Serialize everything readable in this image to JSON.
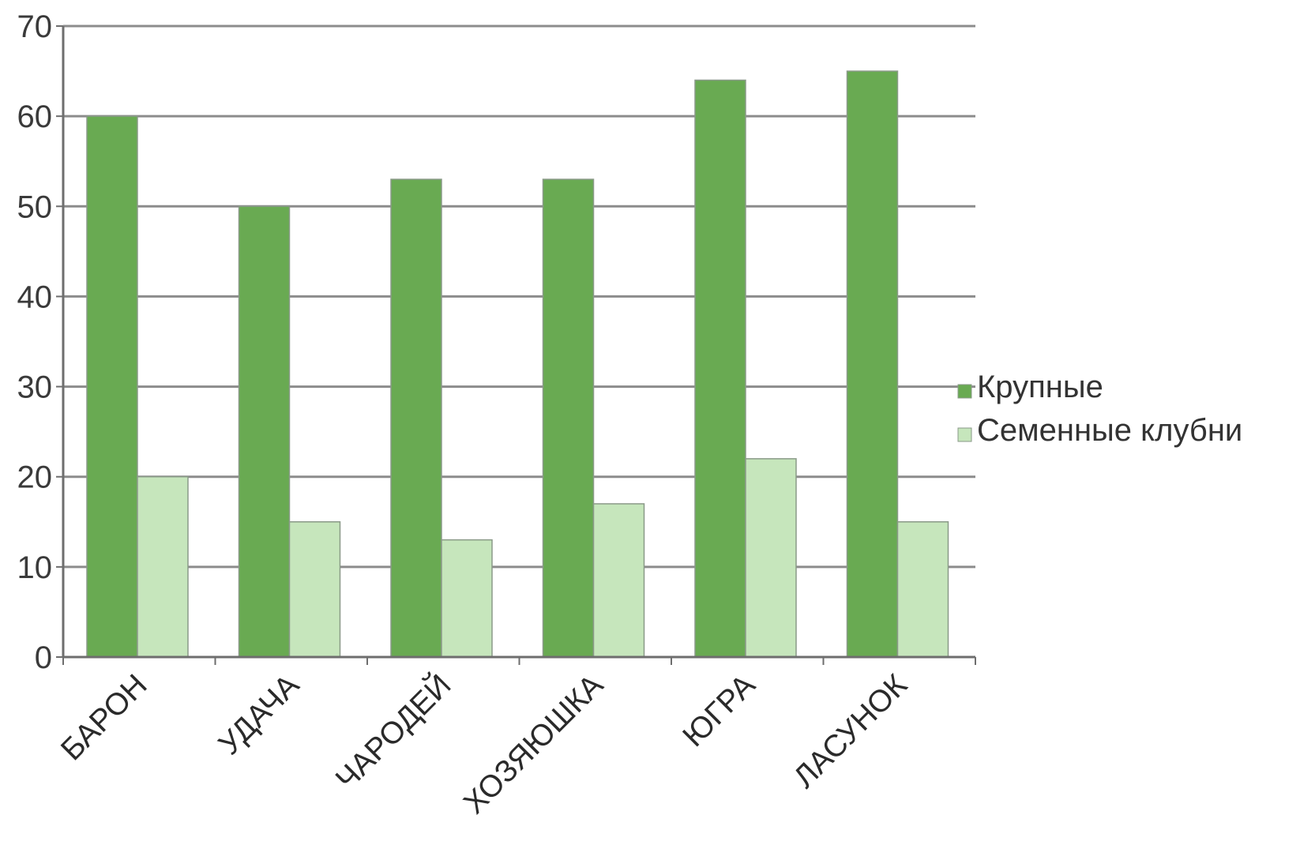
{
  "chart_data": {
    "type": "bar",
    "title": "",
    "xlabel": "",
    "ylabel": "",
    "categories": [
      "БАРОН",
      "УДАЧА",
      "ЧАРОДЕЙ",
      "ХОЗЯЮШКА",
      "ЮГРА",
      "ЛАСУНОК"
    ],
    "series": [
      {
        "name": "Крупные",
        "values": [
          60,
          50,
          53,
          53,
          64,
          65
        ],
        "color": "#69aa52"
      },
      {
        "name": "Семенные клубни",
        "values": [
          20,
          15,
          13,
          17,
          22,
          15
        ],
        "color": "#c6e6bc"
      }
    ],
    "ylim": [
      0,
      70
    ],
    "yticks": [
      0,
      10,
      20,
      30,
      40,
      50,
      60,
      70
    ],
    "grid": true,
    "legend_position": "right",
    "gridline_color": "#8c8c8c",
    "axis_color": "#6e6e6e",
    "bar_border_color": "#8a9a88"
  }
}
